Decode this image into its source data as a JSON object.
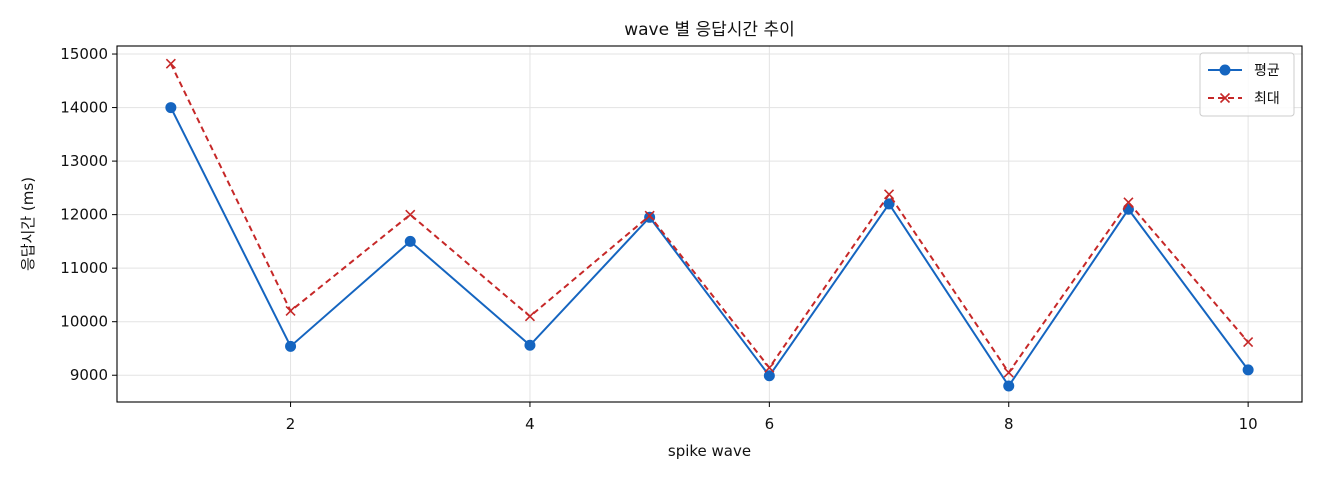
{
  "chart_data": {
    "type": "line",
    "title": "wave 별 응답시간 추이",
    "xlabel": "spike wave",
    "ylabel": "응답시간 (ms)",
    "x": [
      1,
      2,
      3,
      4,
      5,
      6,
      7,
      8,
      9,
      10
    ],
    "xticks": [
      2,
      4,
      6,
      8,
      10
    ],
    "yticks": [
      9000,
      10000,
      11000,
      12000,
      13000,
      14000,
      15000
    ],
    "xlim": [
      0.55,
      10.45
    ],
    "ylim": [
      8500,
      15150
    ],
    "grid": true,
    "legend_position": "top-right",
    "series": [
      {
        "name": "평균",
        "color": "#1565c0",
        "line_style": "solid",
        "marker": "circle",
        "values": [
          14000,
          9540,
          11500,
          9560,
          11950,
          8990,
          12200,
          8800,
          12100,
          9100
        ]
      },
      {
        "name": "최대",
        "color": "#c62828",
        "line_style": "dashed",
        "marker": "x",
        "values": [
          14820,
          10200,
          12000,
          10100,
          11980,
          9140,
          12380,
          9050,
          12230,
          9620
        ]
      }
    ]
  }
}
